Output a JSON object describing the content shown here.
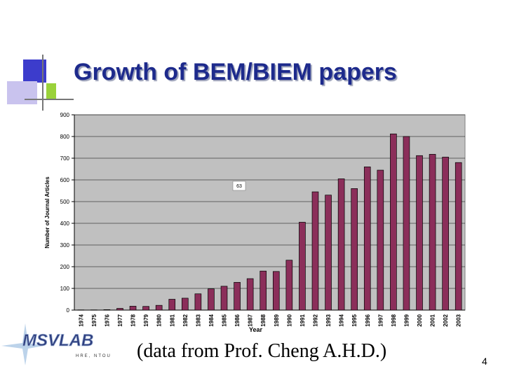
{
  "slide": {
    "title": "Growth of BEM/BIEM papers",
    "credit": "(data from Prof. Cheng A.H.D.)",
    "page_number": "4"
  },
  "logo": {
    "text": "MSVLAB",
    "subtext": "HRE, NTOU"
  },
  "colors": {
    "title": "#1d2a8c",
    "bar_fill": "#8b2e5a",
    "plot_bg": "#c0c0c0",
    "deco_blue": "#3c3ccc",
    "deco_purple": "#c9c3ee",
    "deco_green": "#9ad23a"
  },
  "chart_data": {
    "type": "bar",
    "categories": [
      "1974",
      "1975",
      "1976",
      "1977",
      "1978",
      "1979",
      "1980",
      "1981",
      "1982",
      "1983",
      "1984",
      "1985",
      "1986",
      "1987",
      "1988",
      "1989",
      "1990",
      "1991",
      "1992",
      "1993",
      "1994",
      "1995",
      "1996",
      "1997",
      "1998",
      "1999",
      "2000",
      "2001",
      "2002",
      "2003"
    ],
    "values": [
      1,
      1,
      2,
      8,
      18,
      17,
      22,
      50,
      55,
      75,
      98,
      110,
      128,
      145,
      180,
      178,
      230,
      405,
      545,
      530,
      605,
      560,
      660,
      645,
      812,
      800,
      712,
      718,
      705,
      680
    ],
    "xlabel": "Year",
    "ylabel": "Number of Journal Articles",
    "ylim": [
      0,
      900
    ],
    "yticks": [
      "0",
      "100",
      "200",
      "300",
      "400",
      "500",
      "600",
      "700",
      "800",
      "900"
    ],
    "grid": true,
    "annotation": "63"
  }
}
